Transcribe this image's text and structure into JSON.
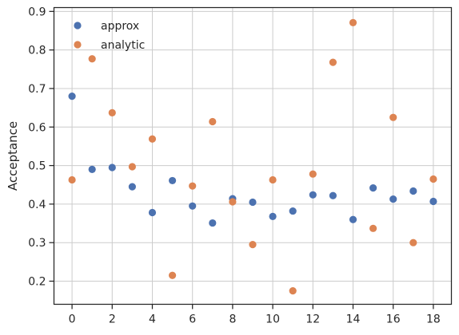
{
  "chart_data": {
    "type": "scatter",
    "title": "",
    "xlabel": "",
    "ylabel": "Acceptance",
    "xlim": [
      -0.9,
      18.9
    ],
    "ylim": [
      0.14,
      0.91
    ],
    "xticks": [
      0,
      2,
      4,
      6,
      8,
      10,
      12,
      14,
      16,
      18
    ],
    "yticks": [
      0.2,
      0.3,
      0.4,
      0.5,
      0.6,
      0.7,
      0.8,
      0.9
    ],
    "grid": true,
    "legend_position": "top-left",
    "series": [
      {
        "name": "approx",
        "color": "#4c72b0",
        "x": [
          0,
          1,
          2,
          3,
          4,
          5,
          6,
          7,
          8,
          9,
          10,
          11,
          12,
          13,
          14,
          15,
          16,
          17,
          18
        ],
        "y": [
          0.68,
          0.49,
          0.495,
          0.445,
          0.378,
          0.461,
          0.395,
          0.351,
          0.414,
          0.405,
          0.368,
          0.382,
          0.424,
          0.422,
          0.36,
          0.442,
          0.413,
          0.434,
          0.407
        ]
      },
      {
        "name": "analytic",
        "color": "#dd8452",
        "x": [
          0,
          1,
          2,
          3,
          4,
          5,
          6,
          7,
          8,
          9,
          10,
          11,
          12,
          13,
          14,
          15,
          16,
          17,
          18
        ],
        "y": [
          0.463,
          0.777,
          0.637,
          0.497,
          0.569,
          0.215,
          0.447,
          0.614,
          0.406,
          0.295,
          0.463,
          0.175,
          0.478,
          0.768,
          0.871,
          0.337,
          0.625,
          0.3,
          0.465
        ]
      }
    ]
  }
}
